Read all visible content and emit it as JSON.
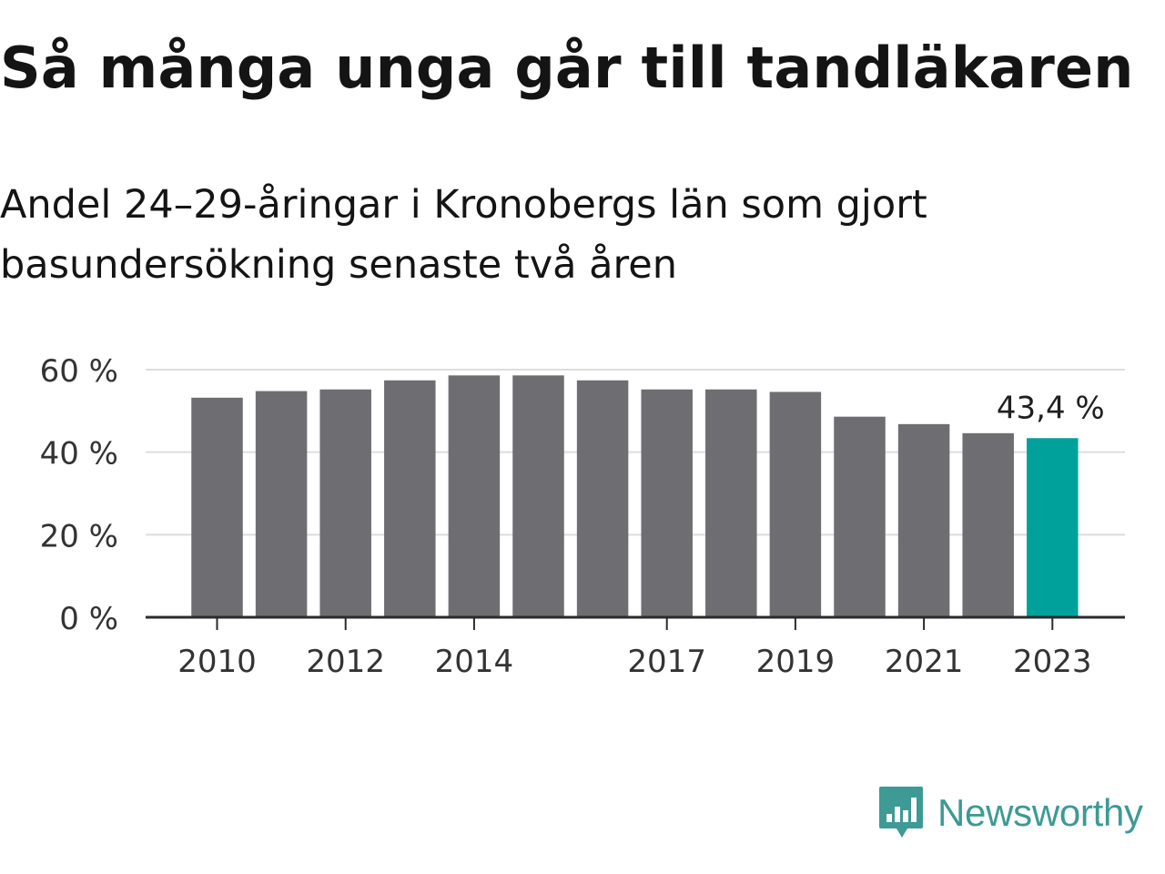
{
  "header": {
    "title": "Så många unga går till tandläkaren",
    "subtitle": "Andel 24–29-åringar i Kronobergs län som gjort basundersökning senaste två åren"
  },
  "brand": {
    "name": "Newsworthy",
    "logo_icon": "speech-bubble-bar-chart-icon",
    "color": "#3d9a94"
  },
  "colors": {
    "bar": "#6e6d72",
    "highlight": "#00a19a",
    "grid": "#dddddd",
    "axis": "#2b2b2b",
    "text": "#333333"
  },
  "chart_data": {
    "type": "bar",
    "title": "Så många unga går till tandläkaren",
    "subtitle": "Andel 24–29-åringar i Kronobergs län som gjort basundersökning senaste två åren",
    "categories": [
      "2010",
      "2011",
      "2012",
      "2013",
      "2014",
      "2015",
      "2016",
      "2017",
      "2018",
      "2019",
      "2020",
      "2021",
      "2022",
      "2023"
    ],
    "values": [
      53.2,
      54.8,
      55.2,
      57.4,
      58.6,
      58.6,
      57.4,
      55.2,
      55.2,
      54.6,
      48.6,
      46.8,
      44.6,
      43.4
    ],
    "x_tick_labels": [
      "2010",
      "2012",
      "2014",
      "2017",
      "2019",
      "2021",
      "2023"
    ],
    "y_ticks": [
      0,
      20,
      40,
      60
    ],
    "y_tick_labels": [
      "0 %",
      "20 %",
      "40 %",
      "60 %"
    ],
    "ylim": [
      0,
      60
    ],
    "xlabel": "",
    "ylabel": "",
    "grid": true,
    "highlight_category": "2023",
    "annotation": "43,4 %"
  }
}
